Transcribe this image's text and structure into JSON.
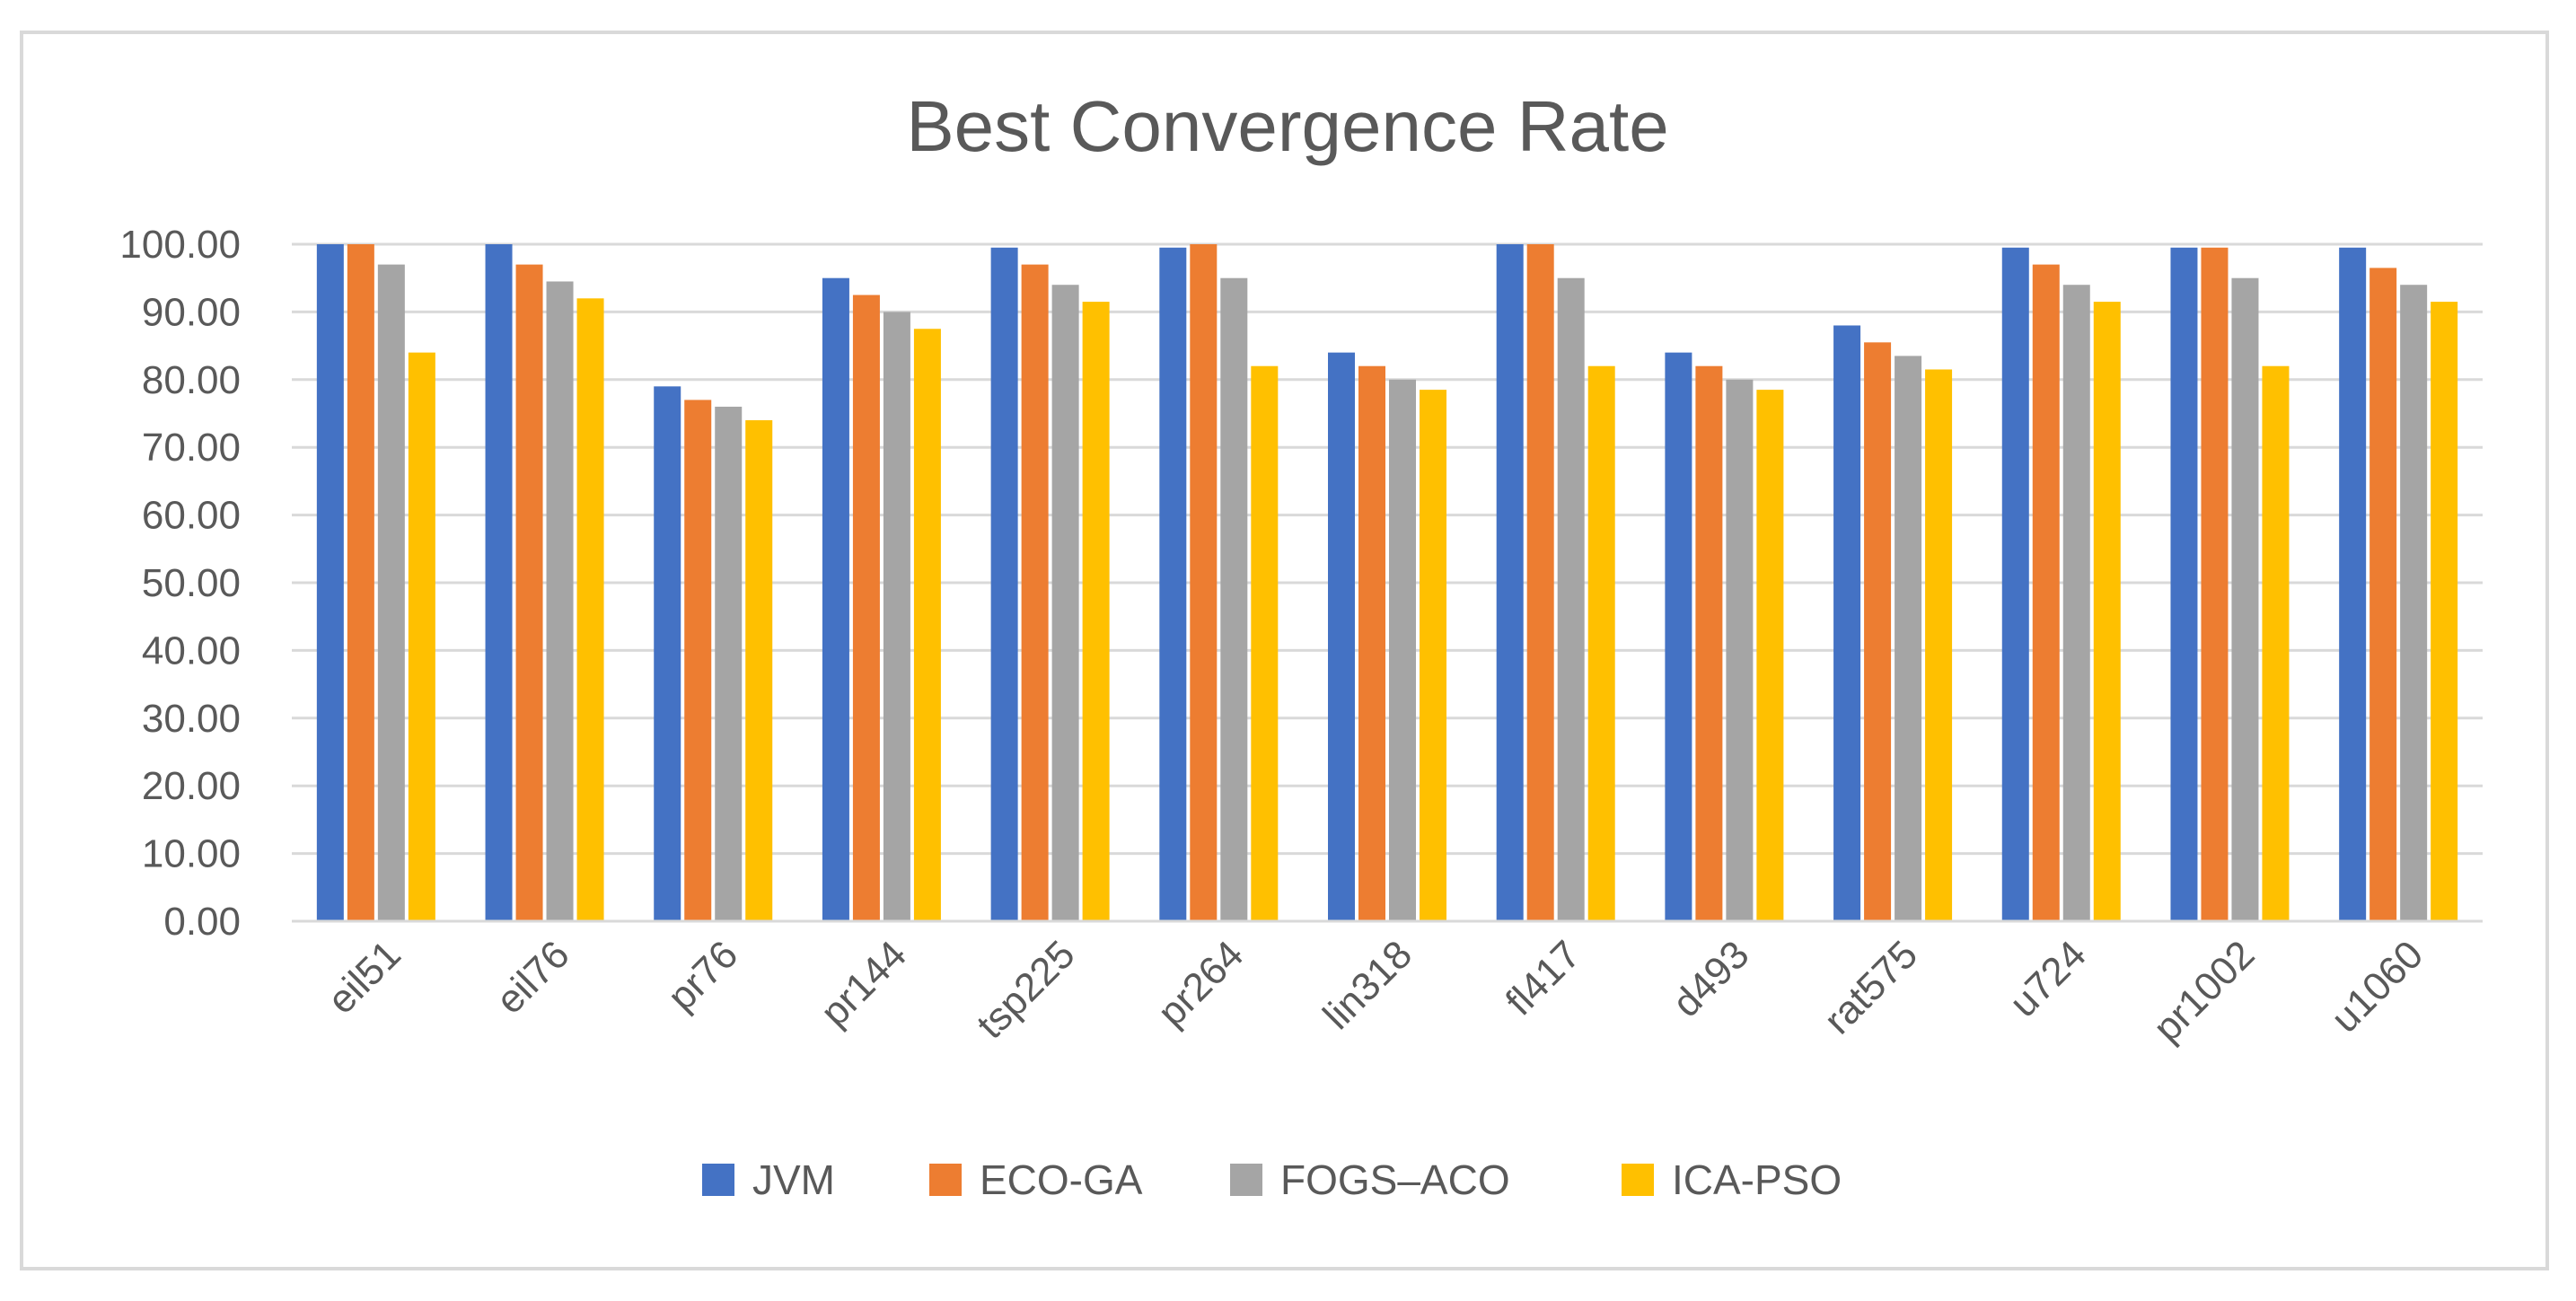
{
  "chart_data": {
    "type": "bar",
    "title": "Best Convergence Rate",
    "xlabel": "",
    "ylabel": "",
    "ylim": [
      0,
      100
    ],
    "yticks": [
      0,
      10,
      20,
      30,
      40,
      50,
      60,
      70,
      80,
      90,
      100
    ],
    "ytick_labels": [
      "0.00",
      "10.00",
      "20.00",
      "30.00",
      "40.00",
      "50.00",
      "60.00",
      "70.00",
      "80.00",
      "90.00",
      "100.00"
    ],
    "grid": true,
    "legend_position": "bottom",
    "categories": [
      "eil51",
      "eil76",
      "pr76",
      "pr144",
      "tsp225",
      "pr264",
      "lin318",
      "fl417",
      "d493",
      "rat575",
      "u724",
      "pr1002",
      "u1060"
    ],
    "series": [
      {
        "name": "JVM",
        "color": "#4472c4",
        "values": [
          100,
          100,
          79,
          95,
          99.5,
          99.5,
          84,
          100,
          84,
          88,
          99.5,
          99.5,
          99.5
        ]
      },
      {
        "name": "ECO-GA",
        "color": "#ed7d31",
        "values": [
          100,
          97,
          77,
          92.5,
          97,
          100,
          82,
          100,
          82,
          85.5,
          97,
          99.5,
          96.5
        ]
      },
      {
        "name": "FOGS–ACO",
        "color": "#a5a5a5",
        "values": [
          97,
          94.5,
          76,
          90,
          94,
          95,
          80,
          95,
          80,
          83.5,
          94,
          95,
          94
        ]
      },
      {
        "name": "ICA-PSO",
        "color": "#ffc000",
        "values": [
          84,
          92,
          74,
          87.5,
          91.5,
          82,
          78.5,
          82,
          78.5,
          81.5,
          91.5,
          82,
          91.5
        ]
      }
    ]
  }
}
